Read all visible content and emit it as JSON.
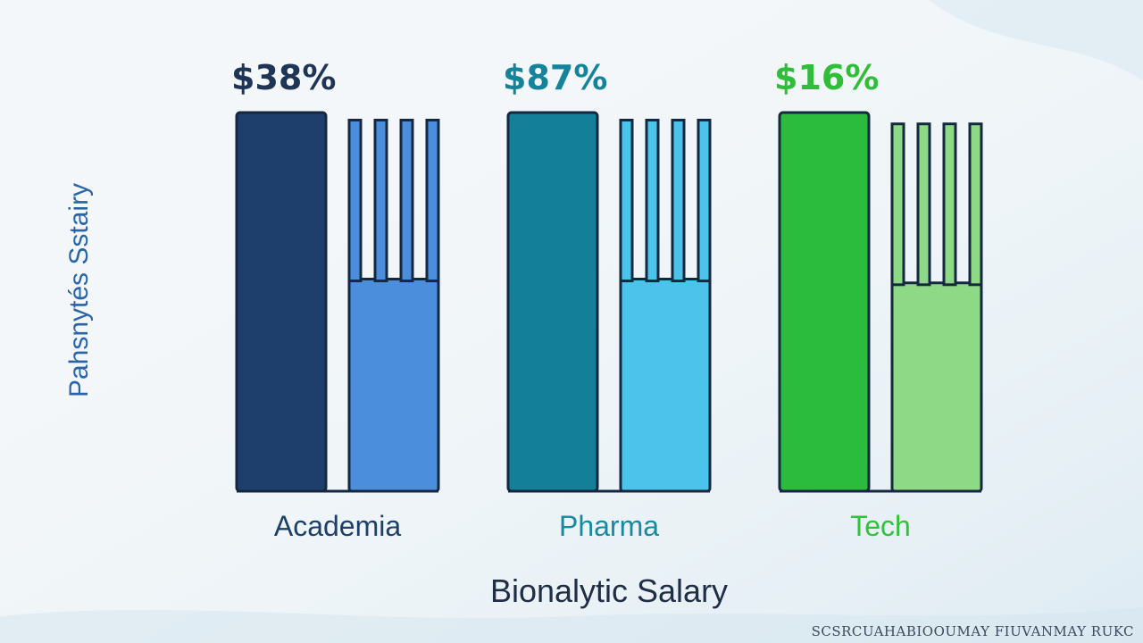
{
  "chart_data": {
    "type": "bar",
    "categories": [
      "Academia",
      "Pharma",
      "Tech"
    ],
    "value_labels": [
      "$38%",
      "$87%",
      "$16%"
    ],
    "series": [
      {
        "values": [
          100,
          100,
          100
        ],
        "colors": [
          "#1e3f6b",
          "#137f98",
          "#2bbb3d"
        ]
      },
      {
        "values": [
          98,
          98,
          97
        ],
        "colors": [
          "#4a8edc",
          "#4cc3ea",
          "#8ed985"
        ]
      }
    ],
    "grille_tops": [
      56,
      56,
      55
    ],
    "ylim": [
      0,
      100
    ],
    "xlabel": "Bionalytic Salary",
    "ylabel": "Pahsnytés Sstairy",
    "label_colors": {
      "Academia": "#1d4068",
      "Pharma": "#178aa0",
      "Tech": "#33c13c"
    },
    "value_label_colors": [
      "#1f3555",
      "#15849b",
      "#2fbd3a"
    ],
    "ylabel_color": "#2a64a8",
    "xlabel_color": "#1f2d45",
    "footnote": "SCSRCUAHABIOOUMAY FIUVANMAY RUKC"
  }
}
